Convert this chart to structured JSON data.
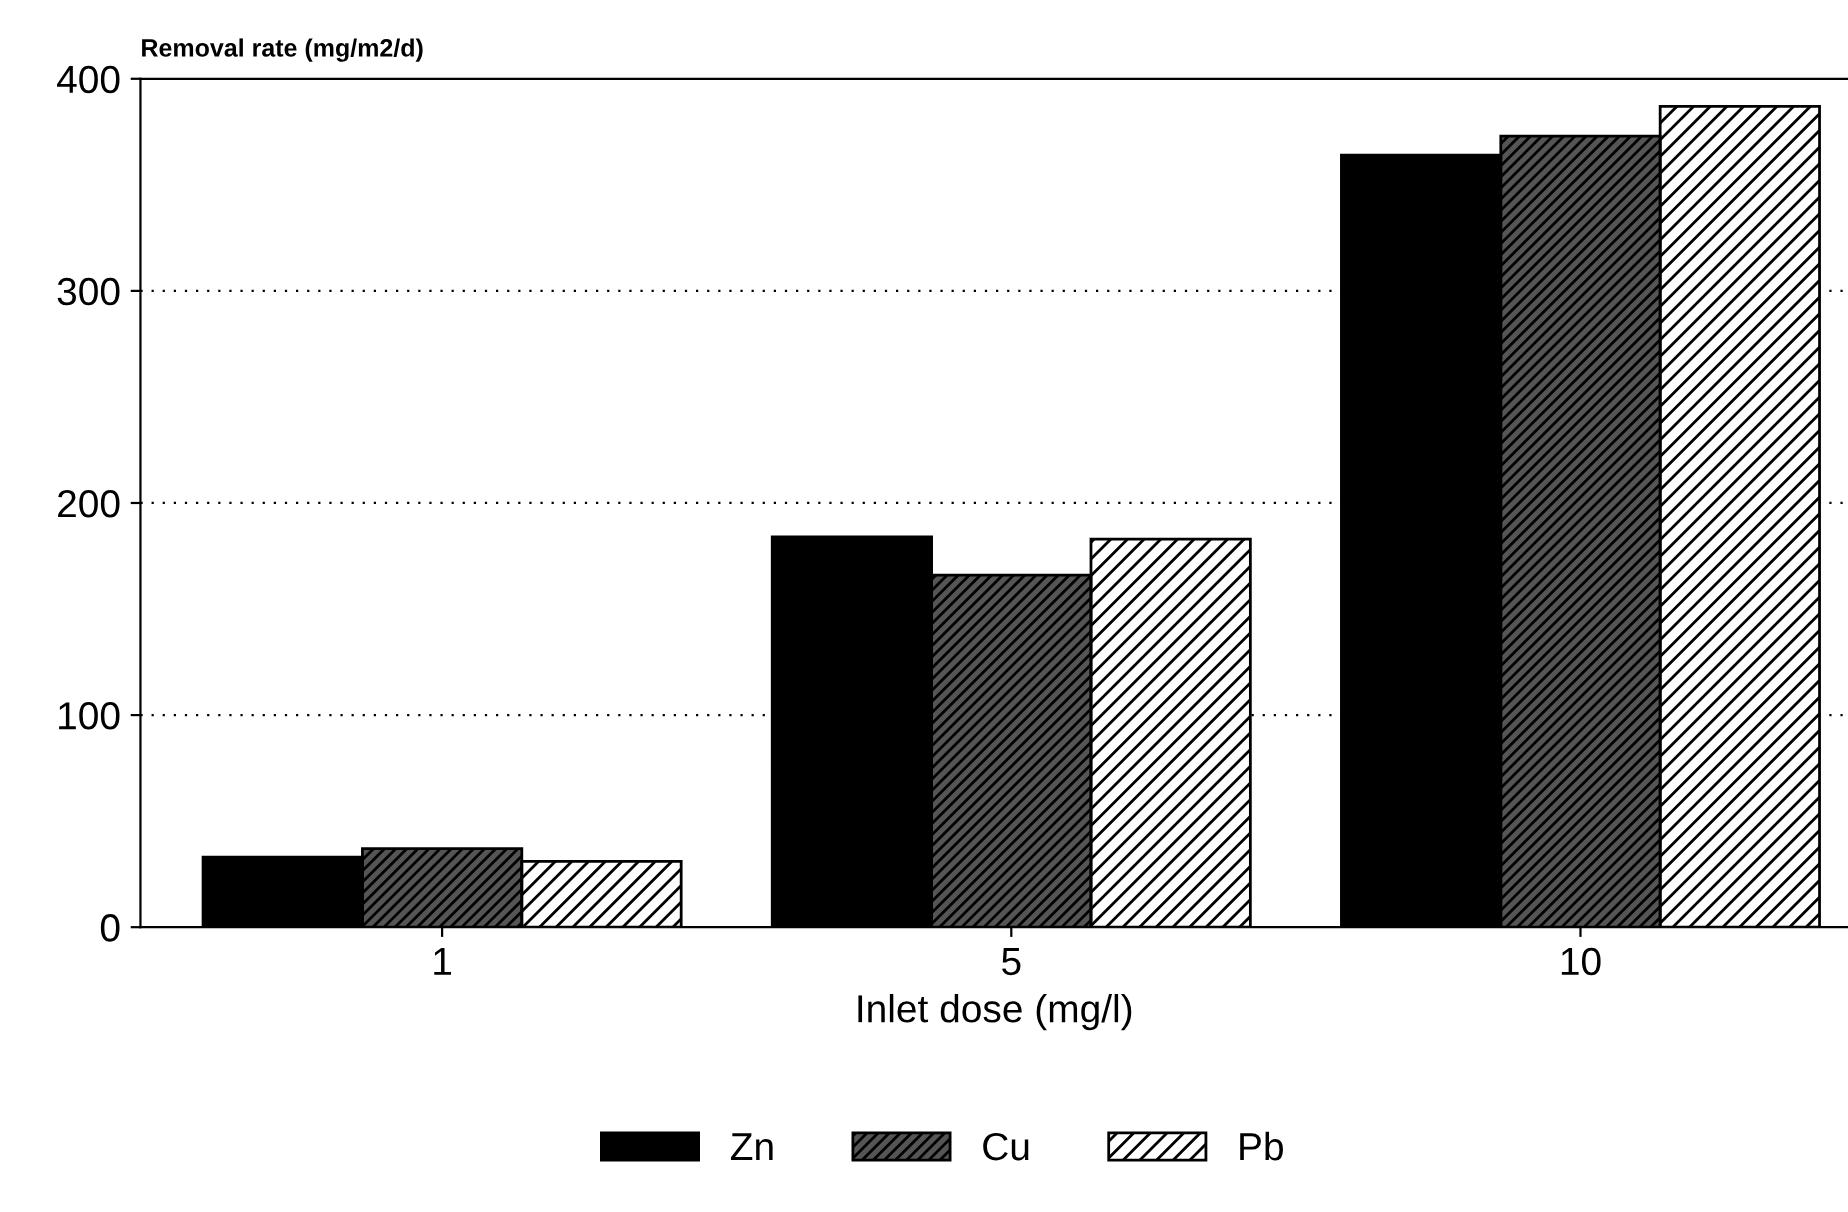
{
  "chart_data": {
    "type": "bar",
    "ylabel": "Removal rate (mg/m2/d)",
    "xlabel": "Inlet dose (mg/l)",
    "categories": [
      "1",
      "5",
      "10"
    ],
    "series": [
      {
        "name": "Zn",
        "color": "#000000",
        "values": [
          33,
          184,
          364
        ]
      },
      {
        "name": "Cu",
        "color": "#555555",
        "values": [
          37,
          166,
          373
        ]
      },
      {
        "name": "Pb",
        "color": "#ffffff",
        "values": [
          31,
          183,
          387
        ]
      }
    ],
    "ylim": [
      0,
      400
    ],
    "yticks": [
      0,
      100,
      200,
      300,
      400
    ],
    "grid": "y",
    "legend": "bottom"
  }
}
